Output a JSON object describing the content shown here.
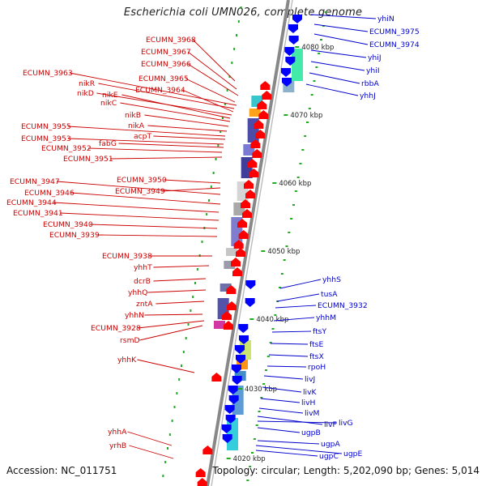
{
  "title": "Escherichia coli UMN026, complete genome",
  "footer": {
    "accession": "Accession: NC_011751",
    "topology": "Topology: circular; Length: 5,202,090 bp; Genes: 5,014"
  },
  "colors": {
    "forward_gene": "#ff0000",
    "reverse_gene": "#0000ff",
    "forward_label": "#cc0000",
    "reverse_label": "#0000cc",
    "backbone": "#888888",
    "gc_dots": "#22aa22"
  },
  "scale_marks": [
    "4080 kbp",
    "4070 kbp",
    "4060 kbp",
    "4050 kbp",
    "4040 kbp",
    "4030 kbp",
    "4020 kbp"
  ],
  "left_labels": [
    "ECUMN_3968",
    "ECUMN_3967",
    "ECUMN_3966",
    "ECUMN_3963",
    "ECUMN_3965",
    "nikR",
    "ECUMN_3964",
    "nikD",
    "nikE",
    "nikC",
    "nikB",
    "nikA",
    "ECUMN_3955",
    "acpT",
    "ECUMN_3953",
    "fabG",
    "ECUMN_3952",
    "ECUMN_3951",
    "ECUMN_3947",
    "ECUMN_3950",
    "ECUMN_3946",
    "ECUMN_3949",
    "ECUMN_3944",
    "ECUMN_3941",
    "ECUMN_3940",
    "ECUMN_3939",
    "ECUMN_3938",
    "yhhT",
    "dcrB",
    "yhhQ",
    "zntA",
    "yhhN",
    "ECUMN_3928",
    "rsmD",
    "yhhK",
    "yhhA",
    "yrhB"
  ],
  "right_labels": [
    "yhiN",
    "ECUMN_3975",
    "ECUMN_3974",
    "yhiJ",
    "yhiI",
    "rbbA",
    "yhhJ",
    "yhhS",
    "tusA",
    "ECUMN_3932",
    "yhhM",
    "ftsY",
    "ftsE",
    "ftsX",
    "rpoH",
    "livJ",
    "livK",
    "livH",
    "livM",
    "livF",
    "livG",
    "ugpB",
    "ugpA",
    "ugpE",
    "ugpC"
  ]
}
